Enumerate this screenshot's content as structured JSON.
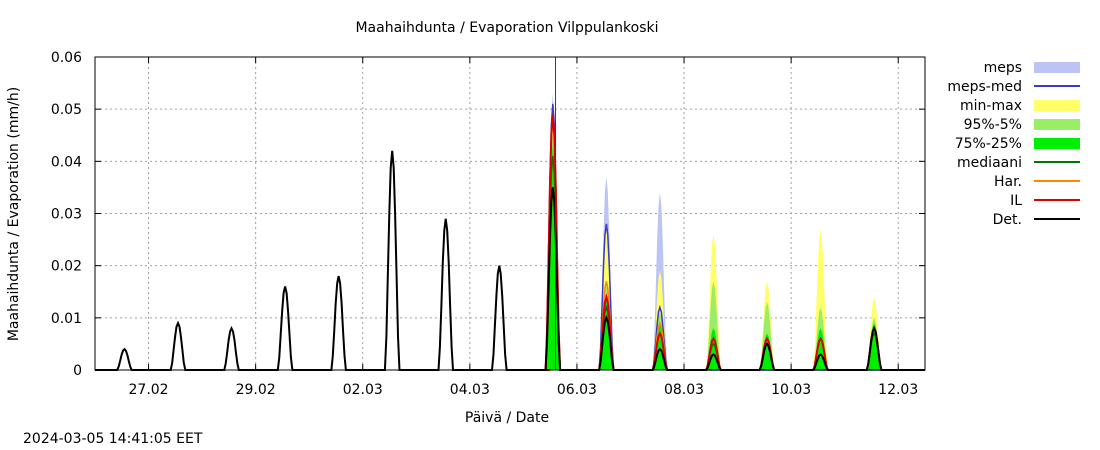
{
  "chart_data": {
    "type": "area",
    "title": "Maahaihdunta / Evaporation  Vilppulankoski",
    "xlabel": "Päivä / Date",
    "ylabel": "Maahaihdunta / Evaporation (mm/h)",
    "ylim": [
      0,
      0.06
    ],
    "xlim_days": [
      0,
      15.5
    ],
    "y_ticks": [
      {
        "value": 0,
        "label": "0"
      },
      {
        "value": 0.01,
        "label": "0.01"
      },
      {
        "value": 0.02,
        "label": "0.02"
      },
      {
        "value": 0.03,
        "label": "0.03"
      },
      {
        "value": 0.04,
        "label": "0.04"
      },
      {
        "value": 0.05,
        "label": "0.05"
      },
      {
        "value": 0.06,
        "label": "0.06"
      }
    ],
    "x_ticks": [
      {
        "day": 1,
        "label": "27.02"
      },
      {
        "day": 3,
        "label": "29.02"
      },
      {
        "day": 5,
        "label": "02.03"
      },
      {
        "day": 7,
        "label": "04.03"
      },
      {
        "day": 9,
        "label": "06.03"
      },
      {
        "day": 11,
        "label": "08.03"
      },
      {
        "day": 13,
        "label": "10.03"
      },
      {
        "day": 15,
        "label": "12.03"
      }
    ],
    "x_unit": "days since 26.02 00:00",
    "forecast_start_day": 8.6,
    "legend_position": "right",
    "legend": [
      {
        "key": "meps",
        "label": "meps",
        "style": "band",
        "color": "#bcc3f5"
      },
      {
        "key": "meps_med",
        "label": "meps-med",
        "style": "line",
        "color": "#3a3ac8"
      },
      {
        "key": "minmax",
        "label": "min-max",
        "style": "band",
        "color": "#ffff66"
      },
      {
        "key": "p95_5",
        "label": "95%-5%",
        "style": "band",
        "color": "#99ee66"
      },
      {
        "key": "p75_25",
        "label": "75%-25%",
        "style": "band",
        "color": "#00ee00"
      },
      {
        "key": "mediaani",
        "label": "mediaani",
        "style": "line",
        "color": "#007700"
      },
      {
        "key": "har",
        "label": "Har.",
        "style": "line",
        "color": "#ff8800"
      },
      {
        "key": "il",
        "label": "IL",
        "style": "line",
        "color": "#dd0000"
      },
      {
        "key": "det",
        "label": "Det.",
        "style": "line",
        "color": "#000000"
      }
    ],
    "det_observed_peaks": [
      {
        "day": 0.55,
        "value": 0.004
      },
      {
        "day": 1.55,
        "value": 0.009
      },
      {
        "day": 2.55,
        "value": 0.008
      },
      {
        "day": 3.55,
        "value": 0.016
      },
      {
        "day": 4.55,
        "value": 0.018
      },
      {
        "day": 5.55,
        "value": 0.042
      },
      {
        "day": 6.55,
        "value": 0.029
      },
      {
        "day": 7.55,
        "value": 0.02
      }
    ],
    "forecast_peaks": [
      {
        "day": 8.55,
        "meps": 0.053,
        "meps_med": 0.051,
        "minmax": 0.046,
        "p95_5": 0.045,
        "p75_25": 0.043,
        "mediaani": 0.041,
        "har": 0.048,
        "il": 0.049,
        "det": 0.035
      },
      {
        "day": 9.55,
        "meps": 0.037,
        "meps_med": 0.028,
        "minmax": 0.027,
        "p95_5": 0.017,
        "p75_25": 0.014,
        "mediaani": 0.012,
        "har": 0.017,
        "il": 0.014,
        "det": 0.01
      },
      {
        "day": 10.55,
        "meps": 0.034,
        "meps_med": 0.012,
        "minmax": 0.019,
        "p95_5": 0.011,
        "p75_25": 0.009,
        "mediaani": 0.007,
        "har": 0.009,
        "il": 0.007,
        "det": 0.004
      },
      {
        "day": 11.55,
        "meps": 0.0,
        "meps_med": 0.0,
        "minmax": 0.026,
        "p95_5": 0.017,
        "p75_25": 0.008,
        "mediaani": 0.005,
        "har": 0.006,
        "il": 0.006,
        "det": 0.003
      },
      {
        "day": 12.55,
        "meps": 0.0,
        "meps_med": 0.0,
        "minmax": 0.017,
        "p95_5": 0.013,
        "p75_25": 0.007,
        "mediaani": 0.005,
        "har": 0.006,
        "il": 0.006,
        "det": 0.005
      },
      {
        "day": 13.55,
        "meps": 0.0,
        "meps_med": 0.0,
        "minmax": 0.027,
        "p95_5": 0.012,
        "p75_25": 0.008,
        "mediaani": 0.006,
        "har": 0.006,
        "il": 0.006,
        "det": 0.003
      },
      {
        "day": 14.55,
        "meps": 0.0,
        "meps_med": 0.0,
        "minmax": 0.014,
        "p95_5": 0.01,
        "p75_25": 0.009,
        "mediaani": 0.007,
        "har": 0.008,
        "il": 0.008,
        "det": 0.008
      }
    ]
  },
  "footer": {
    "timestamp": "2024-03-05 14:41:05 EET"
  }
}
